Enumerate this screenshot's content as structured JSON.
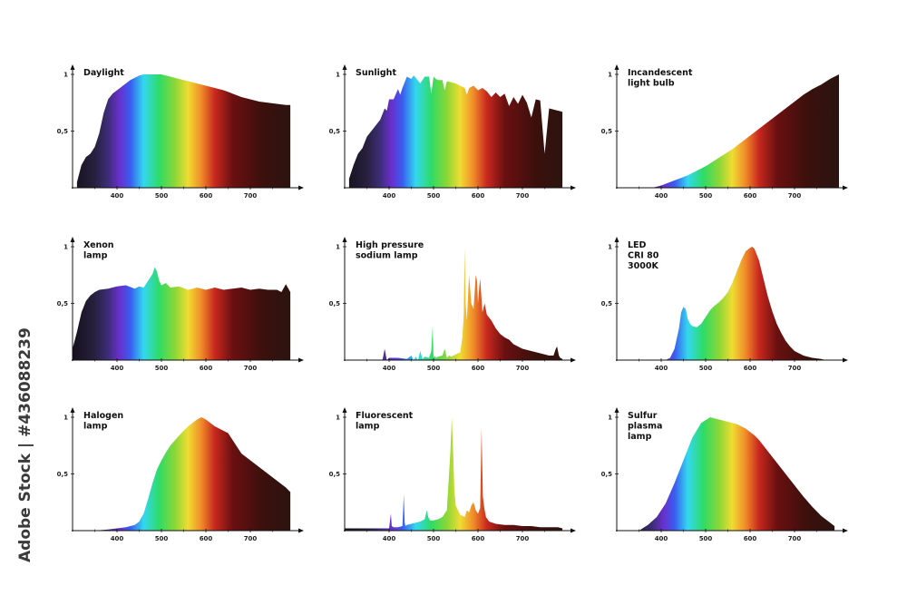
{
  "watermark": "Adobe Stock | #436088239",
  "chart_data": [
    {
      "type": "area",
      "title": "Daylight",
      "x_ticks": [
        400,
        500,
        600,
        700
      ],
      "y_ticks": [
        "1",
        "0,5"
      ],
      "ylim": [
        0,
        1
      ],
      "xlim": [
        300,
        800
      ],
      "x": [
        310,
        320,
        330,
        340,
        350,
        360,
        370,
        380,
        390,
        400,
        410,
        420,
        430,
        440,
        450,
        460,
        470,
        480,
        490,
        500,
        510,
        520,
        530,
        540,
        550,
        560,
        570,
        580,
        590,
        600,
        620,
        640,
        660,
        680,
        700,
        720,
        740,
        760,
        780,
        790
      ],
      "y": [
        0.05,
        0.2,
        0.27,
        0.3,
        0.36,
        0.48,
        0.66,
        0.78,
        0.83,
        0.86,
        0.89,
        0.92,
        0.95,
        0.97,
        0.99,
        1.0,
        1.0,
        1.0,
        1.0,
        1.0,
        0.99,
        0.98,
        0.97,
        0.96,
        0.95,
        0.94,
        0.93,
        0.92,
        0.91,
        0.9,
        0.88,
        0.86,
        0.83,
        0.8,
        0.78,
        0.76,
        0.75,
        0.74,
        0.73,
        0.73
      ]
    },
    {
      "type": "area",
      "title": "Sunlight",
      "x_ticks": [
        400,
        500,
        600,
        700
      ],
      "y_ticks": [
        "1",
        "0,5"
      ],
      "ylim": [
        0,
        1
      ],
      "xlim": [
        300,
        800
      ],
      "x": [
        310,
        320,
        330,
        340,
        350,
        360,
        370,
        380,
        390,
        395,
        400,
        410,
        420,
        425,
        430,
        440,
        450,
        455,
        460,
        470,
        480,
        490,
        495,
        500,
        505,
        510,
        520,
        525,
        530,
        540,
        550,
        560,
        570,
        575,
        580,
        590,
        600,
        610,
        620,
        630,
        640,
        650,
        660,
        670,
        680,
        690,
        700,
        710,
        720,
        730,
        740,
        750,
        760,
        770,
        780,
        790
      ],
      "y": [
        0.08,
        0.2,
        0.3,
        0.35,
        0.45,
        0.5,
        0.55,
        0.6,
        0.7,
        0.68,
        0.78,
        0.78,
        0.87,
        0.82,
        0.88,
        0.98,
        0.96,
        0.99,
        0.97,
        0.92,
        0.98,
        0.98,
        0.83,
        0.98,
        0.96,
        0.95,
        0.95,
        0.86,
        0.94,
        0.93,
        0.92,
        0.9,
        0.88,
        0.82,
        0.88,
        0.9,
        0.86,
        0.88,
        0.85,
        0.8,
        0.84,
        0.8,
        0.83,
        0.72,
        0.8,
        0.74,
        0.82,
        0.75,
        0.62,
        0.78,
        0.77,
        0.3,
        0.7,
        0.69,
        0.68,
        0.67
      ]
    },
    {
      "type": "area",
      "title": "Incandescent light bulb",
      "title_lines": [
        "Incandescent",
        "light bulb"
      ],
      "x_ticks": [
        400,
        500,
        600,
        700
      ],
      "y_ticks": [
        "1",
        "0,5"
      ],
      "ylim": [
        0,
        1
      ],
      "xlim": [
        300,
        800
      ],
      "x": [
        380,
        400,
        420,
        440,
        460,
        480,
        500,
        520,
        540,
        560,
        580,
        600,
        620,
        640,
        660,
        680,
        700,
        720,
        740,
        760,
        780,
        800
      ],
      "y": [
        0.0,
        0.02,
        0.05,
        0.08,
        0.11,
        0.15,
        0.19,
        0.24,
        0.29,
        0.34,
        0.4,
        0.46,
        0.52,
        0.58,
        0.64,
        0.7,
        0.76,
        0.82,
        0.87,
        0.91,
        0.96,
        1.0
      ]
    },
    {
      "type": "area",
      "title": "Xenon lamp",
      "title_lines": [
        "Xenon",
        "lamp"
      ],
      "x_ticks": [
        400,
        500,
        600,
        700
      ],
      "y_ticks": [
        "1",
        "0,5"
      ],
      "ylim": [
        0,
        1
      ],
      "xlim": [
        300,
        800
      ],
      "x": [
        300,
        310,
        320,
        330,
        340,
        350,
        360,
        380,
        400,
        420,
        440,
        450,
        460,
        470,
        480,
        485,
        490,
        495,
        500,
        510,
        520,
        540,
        560,
        580,
        600,
        620,
        640,
        660,
        680,
        700,
        720,
        740,
        760,
        770,
        780,
        790
      ],
      "y": [
        0.1,
        0.25,
        0.42,
        0.52,
        0.57,
        0.6,
        0.62,
        0.63,
        0.65,
        0.66,
        0.63,
        0.65,
        0.64,
        0.7,
        0.76,
        0.82,
        0.78,
        0.7,
        0.66,
        0.68,
        0.64,
        0.65,
        0.62,
        0.64,
        0.62,
        0.64,
        0.62,
        0.63,
        0.64,
        0.62,
        0.63,
        0.62,
        0.62,
        0.6,
        0.67,
        0.6
      ]
    },
    {
      "type": "area",
      "title": "High pressure sodium lamp",
      "title_lines": [
        "High pressure",
        "sodium lamp"
      ],
      "x_ticks": [
        400,
        500,
        600,
        700
      ],
      "y_ticks": [
        "1",
        "0,5"
      ],
      "ylim": [
        0,
        1
      ],
      "xlim": [
        300,
        800
      ],
      "x": [
        300,
        385,
        390,
        395,
        400,
        420,
        440,
        450,
        455,
        460,
        465,
        470,
        475,
        480,
        490,
        495,
        498,
        500,
        502,
        505,
        510,
        520,
        525,
        530,
        535,
        540,
        550,
        560,
        565,
        568,
        570,
        572,
        575,
        578,
        580,
        585,
        590,
        595,
        598,
        600,
        603,
        605,
        610,
        615,
        620,
        630,
        640,
        650,
        660,
        670,
        680,
        690,
        700,
        720,
        740,
        760,
        770,
        775,
        778,
        782,
        785,
        790
      ],
      "y": [
        0.0,
        0.0,
        0.1,
        0.0,
        0.02,
        0.02,
        0.01,
        0.04,
        0.0,
        0.03,
        0.0,
        0.08,
        0.01,
        0.03,
        0.02,
        0.08,
        0.3,
        0.02,
        0.04,
        0.02,
        0.03,
        0.04,
        0.1,
        0.02,
        0.04,
        0.03,
        0.05,
        0.07,
        0.2,
        0.4,
        0.99,
        0.5,
        0.35,
        0.6,
        0.75,
        0.5,
        0.45,
        0.75,
        0.7,
        0.5,
        0.65,
        0.72,
        0.42,
        0.5,
        0.4,
        0.35,
        0.28,
        0.23,
        0.2,
        0.18,
        0.14,
        0.12,
        0.1,
        0.08,
        0.06,
        0.04,
        0.04,
        0.1,
        0.12,
        0.04,
        0.02,
        0.01
      ]
    },
    {
      "type": "area",
      "title": "LED CRI 80 3000K",
      "title_lines": [
        "LED",
        "CRI 80",
        "3000K"
      ],
      "x_ticks": [
        400,
        500,
        600,
        700
      ],
      "y_ticks": [
        "1",
        "0,5"
      ],
      "ylim": [
        0,
        1
      ],
      "xlim": [
        300,
        800
      ],
      "x": [
        410,
        420,
        430,
        440,
        445,
        450,
        455,
        460,
        465,
        470,
        480,
        490,
        500,
        510,
        520,
        530,
        540,
        550,
        560,
        570,
        580,
        590,
        600,
        605,
        610,
        620,
        630,
        640,
        650,
        660,
        670,
        680,
        690,
        700,
        720,
        740,
        760,
        770
      ],
      "y": [
        0.0,
        0.02,
        0.1,
        0.28,
        0.42,
        0.47,
        0.45,
        0.36,
        0.32,
        0.3,
        0.29,
        0.32,
        0.38,
        0.44,
        0.48,
        0.51,
        0.55,
        0.6,
        0.68,
        0.78,
        0.88,
        0.96,
        0.99,
        1.0,
        0.98,
        0.88,
        0.72,
        0.56,
        0.43,
        0.32,
        0.24,
        0.17,
        0.12,
        0.08,
        0.04,
        0.02,
        0.01,
        0.0
      ]
    },
    {
      "type": "area",
      "title": "Halogen lamp",
      "title_lines": [
        "Halogen",
        "lamp"
      ],
      "x_ticks": [
        400,
        500,
        600,
        700
      ],
      "y_ticks": [
        "1",
        "0,5"
      ],
      "ylim": [
        0,
        1
      ],
      "xlim": [
        300,
        800
      ],
      "x": [
        350,
        380,
        400,
        420,
        440,
        450,
        460,
        470,
        480,
        490,
        500,
        510,
        520,
        540,
        560,
        580,
        590,
        600,
        620,
        640,
        650,
        660,
        680,
        700,
        720,
        740,
        760,
        780,
        790
      ],
      "y": [
        0.0,
        0.01,
        0.02,
        0.03,
        0.05,
        0.08,
        0.15,
        0.28,
        0.42,
        0.54,
        0.62,
        0.69,
        0.75,
        0.84,
        0.92,
        0.98,
        1.0,
        0.98,
        0.92,
        0.88,
        0.86,
        0.8,
        0.68,
        0.62,
        0.56,
        0.5,
        0.44,
        0.38,
        0.34
      ]
    },
    {
      "type": "area",
      "title": "Fluorescent lamp",
      "title_lines": [
        "Fluorescent",
        "lamp"
      ],
      "x_ticks": [
        400,
        500,
        600,
        700
      ],
      "y_ticks": [
        "1",
        "0,5"
      ],
      "ylim": [
        0,
        1
      ],
      "xlim": [
        300,
        800
      ],
      "x": [
        300,
        400,
        404,
        406,
        410,
        420,
        430,
        433,
        435,
        437,
        440,
        450,
        460,
        470,
        480,
        485,
        488,
        492,
        500,
        510,
        520,
        530,
        538,
        541,
        544,
        547,
        550,
        560,
        570,
        575,
        580,
        585,
        590,
        595,
        600,
        605,
        608,
        611,
        614,
        618,
        625,
        640,
        660,
        680,
        700,
        720,
        740,
        760,
        780,
        790
      ],
      "y": [
        0.02,
        0.02,
        0.15,
        0.04,
        0.03,
        0.03,
        0.04,
        0.32,
        0.07,
        0.04,
        0.05,
        0.06,
        0.07,
        0.08,
        0.1,
        0.18,
        0.12,
        0.09,
        0.09,
        0.1,
        0.12,
        0.18,
        0.7,
        1.0,
        0.7,
        0.35,
        0.22,
        0.14,
        0.12,
        0.18,
        0.16,
        0.22,
        0.25,
        0.18,
        0.15,
        0.2,
        0.9,
        0.3,
        0.2,
        0.12,
        0.08,
        0.06,
        0.05,
        0.05,
        0.04,
        0.04,
        0.03,
        0.03,
        0.03,
        0.02
      ]
    },
    {
      "type": "area",
      "title": "Sulfur plasma lamp",
      "title_lines": [
        "Sulfur",
        "plasma",
        "lamp"
      ],
      "x_ticks": [
        400,
        500,
        600,
        700
      ],
      "y_ticks": [
        "1",
        "0,5"
      ],
      "ylim": [
        0,
        1
      ],
      "xlim": [
        300,
        800
      ],
      "x": [
        350,
        370,
        390,
        410,
        430,
        450,
        470,
        490,
        510,
        530,
        550,
        570,
        590,
        600,
        610,
        620,
        640,
        660,
        680,
        700,
        720,
        740,
        760,
        780,
        790
      ],
      "y": [
        0.0,
        0.05,
        0.12,
        0.24,
        0.42,
        0.62,
        0.82,
        0.95,
        1.0,
        0.98,
        0.96,
        0.94,
        0.9,
        0.87,
        0.84,
        0.8,
        0.7,
        0.6,
        0.5,
        0.4,
        0.3,
        0.21,
        0.13,
        0.07,
        0.04
      ]
    }
  ]
}
